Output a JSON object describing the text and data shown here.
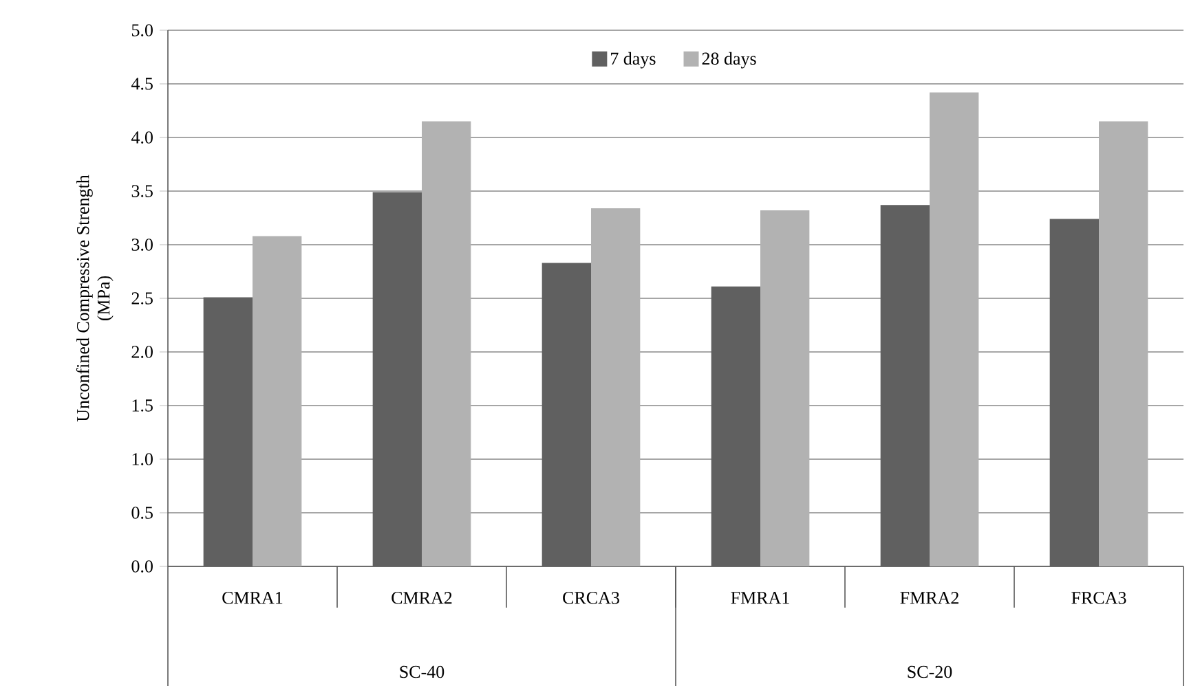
{
  "chart_data": {
    "type": "bar",
    "ylabel": "Unconfined Compressive Strength (MPa)",
    "categories": [
      "CMRA1",
      "CMRA2",
      "CRCA3",
      "FMRA1",
      "FMRA2",
      "FRCA3"
    ],
    "series": [
      {
        "name": "7 days",
        "color": "#606060",
        "values": [
          2.51,
          3.49,
          2.83,
          2.61,
          3.37,
          3.24
        ]
      },
      {
        "name": "28 days",
        "color": "#b2b2b2",
        "values": [
          3.08,
          4.15,
          3.34,
          3.32,
          4.42,
          4.15
        ]
      }
    ],
    "ylim": [
      0,
      5
    ],
    "yticks": [
      {
        "value": 0,
        "label": "0.0"
      },
      {
        "value": 0.5,
        "label": "0.5"
      },
      {
        "value": 1,
        "label": "1.0"
      },
      {
        "value": 1.5,
        "label": "1.5"
      },
      {
        "value": 2,
        "label": "2.0"
      },
      {
        "value": 2.5,
        "label": "2.5"
      },
      {
        "value": 3,
        "label": "3.0"
      },
      {
        "value": 3.5,
        "label": "3.5"
      },
      {
        "value": 4,
        "label": "4.0"
      },
      {
        "value": 4.5,
        "label": "4.5"
      },
      {
        "value": 5,
        "label": "5.0"
      }
    ],
    "grid": "y",
    "legend": "top",
    "annotations": [
      "SC-40",
      "SC-20"
    ]
  }
}
